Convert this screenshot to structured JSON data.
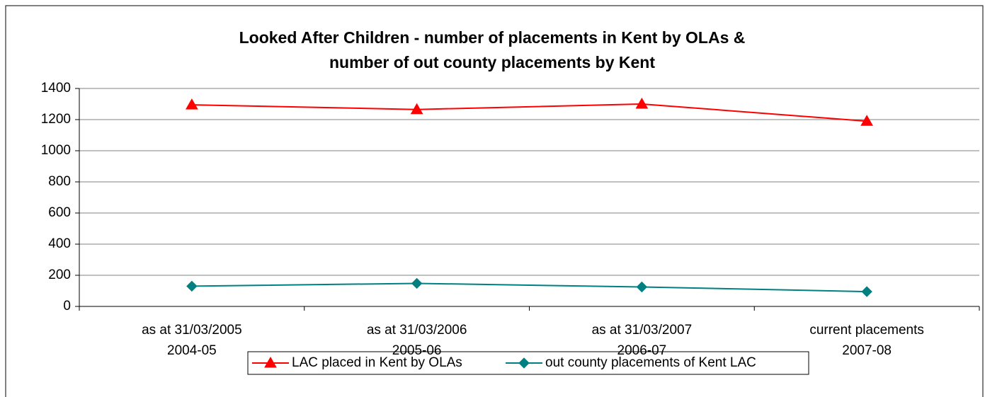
{
  "chart_data": {
    "type": "line",
    "title": [
      "Looked After Children - number of placements in Kent by OLAs &",
      "number of out county placements by Kent"
    ],
    "categories": [
      [
        "as at 31/03/2005",
        "2004-05"
      ],
      [
        "as at 31/03/2006",
        "2005-06"
      ],
      [
        "as at 31/03/2007",
        "2006-07"
      ],
      [
        "current placements",
        "2007-08"
      ]
    ],
    "series": [
      {
        "name": "LAC placed in Kent by OLAs",
        "color": "#ff0000",
        "marker": "triangle",
        "values": [
          1295,
          1265,
          1300,
          1190
        ]
      },
      {
        "name": "out county placements of Kent LAC",
        "color": "#008080",
        "marker": "diamond",
        "values": [
          130,
          148,
          125,
          95
        ]
      }
    ],
    "ylim": [
      0,
      1400
    ],
    "yticks": [
      0,
      200,
      400,
      600,
      800,
      1000,
      1200,
      1400
    ],
    "grid": true,
    "legend": "bottom"
  }
}
